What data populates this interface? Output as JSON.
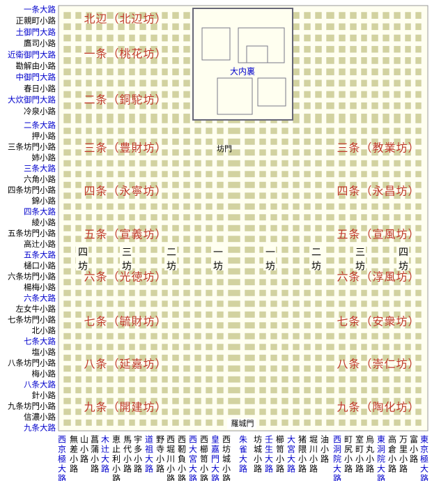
{
  "major_color": "#0000cc",
  "minor_color": "#000000",
  "ward_color": "#c0392b",
  "left_streets": [
    {
      "label": "一条大路",
      "major": true
    },
    {
      "label": "正親町小路",
      "major": false
    },
    {
      "label": "土御門大路",
      "major": true
    },
    {
      "label": "鷹司小路",
      "major": false
    },
    {
      "label": "近衛御門大路",
      "major": true
    },
    {
      "label": "勘解由小路",
      "major": false
    },
    {
      "label": "中御門大路",
      "major": true
    },
    {
      "label": "春日小路",
      "major": false
    },
    {
      "label": "大炊御門大路",
      "major": true
    },
    {
      "label": "冷泉小路",
      "major": false
    },
    {
      "label": "二条大路",
      "major": true
    },
    {
      "label": "押小路",
      "major": false
    },
    {
      "label": "三条坊門小路",
      "major": false
    },
    {
      "label": "姉小路",
      "major": false
    },
    {
      "label": "三条大路",
      "major": true
    },
    {
      "label": "六角小路",
      "major": false
    },
    {
      "label": "四条坊門小路",
      "major": false
    },
    {
      "label": "錦小路",
      "major": false
    },
    {
      "label": "四条大路",
      "major": true
    },
    {
      "label": "綾小路",
      "major": false
    },
    {
      "label": "五条坊門小路",
      "major": false
    },
    {
      "label": "高辻小路",
      "major": false
    },
    {
      "label": "五条大路",
      "major": true
    },
    {
      "label": "樋口小路",
      "major": false
    },
    {
      "label": "六条坊門小路",
      "major": false
    },
    {
      "label": "楊梅小路",
      "major": false
    },
    {
      "label": "六条大路",
      "major": true
    },
    {
      "label": "左女牛小路",
      "major": false
    },
    {
      "label": "七条坊門小路",
      "major": false
    },
    {
      "label": "北小路",
      "major": false
    },
    {
      "label": "七条大路",
      "major": true
    },
    {
      "label": "塩小路",
      "major": false
    },
    {
      "label": "八条坊門小路",
      "major": false
    },
    {
      "label": "梅小路",
      "major": false
    },
    {
      "label": "八条大路",
      "major": true
    },
    {
      "label": "針小路",
      "major": false
    },
    {
      "label": "九条坊門小路",
      "major": false
    },
    {
      "label": "信濃小路",
      "major": false
    },
    {
      "label": "九条大路",
      "major": true
    }
  ],
  "bottom_streets": [
    {
      "label": "西京極大路",
      "major": true
    },
    {
      "label": "無差小路",
      "major": false
    },
    {
      "label": "山小路",
      "major": false
    },
    {
      "label": "菖蒲小路",
      "major": false
    },
    {
      "label": "木辻大路",
      "major": true
    },
    {
      "label": "恵止利小路",
      "major": false
    },
    {
      "label": "馬代小路",
      "major": false
    },
    {
      "label": "宇多小路",
      "major": false
    },
    {
      "label": "道祖大路",
      "major": true
    },
    {
      "label": "野寺小路",
      "major": false
    },
    {
      "label": "西堀川小路",
      "major": false
    },
    {
      "label": "西靭負小路",
      "major": false
    },
    {
      "label": "西大宮大路",
      "major": true
    },
    {
      "label": "西櫛笥小路",
      "major": false
    },
    {
      "label": "皇嘉門大路",
      "major": true
    },
    {
      "label": "西坊城小路",
      "major": false
    },
    {
      "label": "朱雀大路",
      "major": true
    },
    {
      "label": "坊城小路",
      "major": false
    },
    {
      "label": "壬生大路",
      "major": true
    },
    {
      "label": "櫛笥小路",
      "major": false
    },
    {
      "label": "大宮大路",
      "major": true
    },
    {
      "label": "猪隈小路",
      "major": false
    },
    {
      "label": "堀川小路",
      "major": false
    },
    {
      "label": "油小路",
      "major": false
    },
    {
      "label": "西洞院大路",
      "major": true
    },
    {
      "label": "町尻小路",
      "major": false
    },
    {
      "label": "室町小路",
      "major": false
    },
    {
      "label": "烏丸小路",
      "major": false
    },
    {
      "label": "東洞院大路",
      "major": true
    },
    {
      "label": "高倉小路",
      "major": false
    },
    {
      "label": "万里小路",
      "major": false
    },
    {
      "label": "富小路",
      "major": false
    },
    {
      "label": "東京極大路",
      "major": true
    }
  ],
  "wards_left": [
    "北辺（北辺坊）",
    "一条（桃花坊）",
    "二条（銅駝坊）",
    "三条（豊財坊）",
    "四条（永寧坊）",
    "五条（宣義坊）",
    "六条（光徳坊）",
    "七条（毓財坊）",
    "八条（延嘉坊）",
    "九条（開建坊）"
  ],
  "wards_right": [
    "三条（教業坊）",
    "四条（永昌坊）",
    "五条（宣風坊）",
    "六条（淳風坊）",
    "七条（安衆坊）",
    "八条（崇仁坊）",
    "九条（陶化坊）"
  ],
  "bo_labels": [
    "四坊",
    "三坊",
    "二坊",
    "一坊",
    "一坊",
    "二坊",
    "三坊",
    "四坊"
  ],
  "palace": "大内裏",
  "gate": "坊門",
  "rajomon": "羅城門"
}
